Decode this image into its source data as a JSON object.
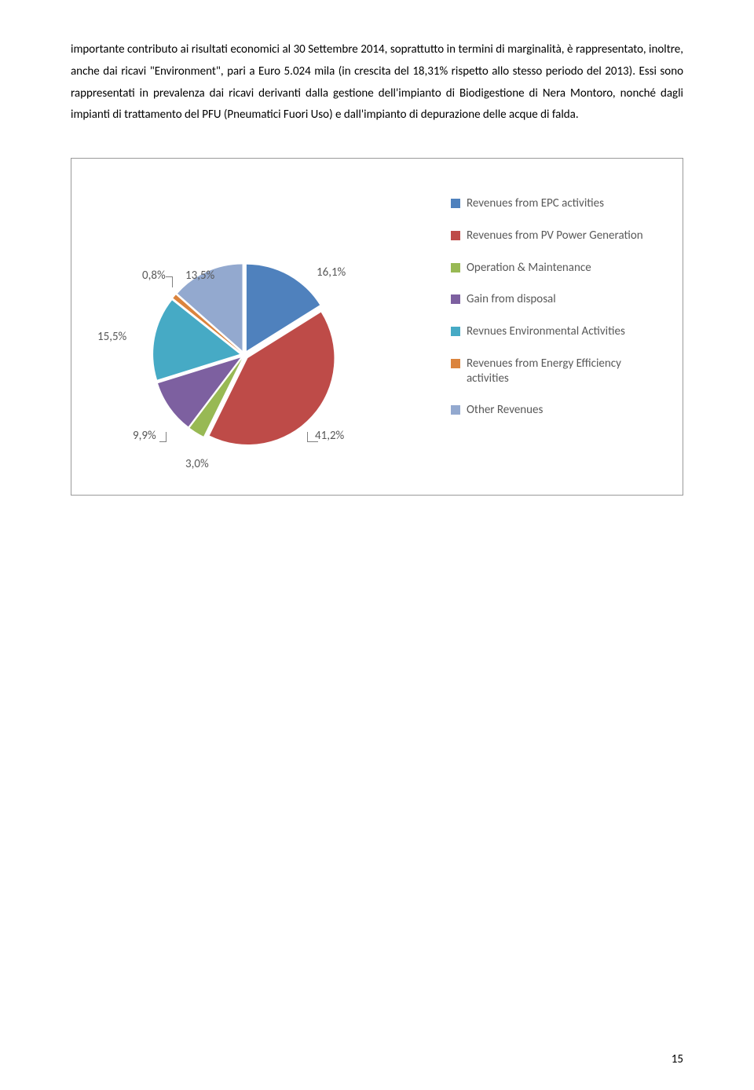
{
  "paragraph": "importante contributo ai risultati economici al 30 Settembre 2014, soprattutto in termini di marginalità, è rappresentato, inoltre, anche dai ricavi \"Environment\", pari a Euro 5.024 mila (in crescita del 18,31% rispetto allo stesso periodo del 2013). Essi sono rappresentati in prevalenza dai ricavi derivanti dalla gestione dell'impianto di Biodigestione di Nera Montoro, nonché dagli impianti di trattamento del PFU (Pneumatici Fuori Uso) e dall'impianto di depurazione delle acque di falda.",
  "chart": {
    "type": "pie",
    "background_color": "#ffffff",
    "border_color": "#999999",
    "label_fontsize": 15,
    "label_color": "#595959",
    "slices": [
      {
        "name": "Revenues from EPC activities",
        "value": 16.1,
        "label": "16,1%",
        "color": "#4f81bd"
      },
      {
        "name": "Revenues from PV Power Generation",
        "value": 41.2,
        "label": "41,2%",
        "color": "#be4b48"
      },
      {
        "name": "Operation & Maintenance",
        "value": 3.0,
        "label": "3,0%",
        "color": "#98b954"
      },
      {
        "name": "Gain from disposal",
        "value": 9.9,
        "label": "9,9%",
        "color": "#7d60a0"
      },
      {
        "name": "Revnues Environmental Activities",
        "value": 15.5,
        "label": "15,5%",
        "color": "#46aac5"
      },
      {
        "name": "Revenues from Energy Efficiency activities",
        "value": 0.8,
        "label": "0,8%",
        "color": "#db843d"
      },
      {
        "name": "Other Revenues",
        "value": 13.5,
        "label": "13,5%",
        "color": "#93a9cf"
      }
    ],
    "explode_gap": 6
  },
  "page_number": "15"
}
